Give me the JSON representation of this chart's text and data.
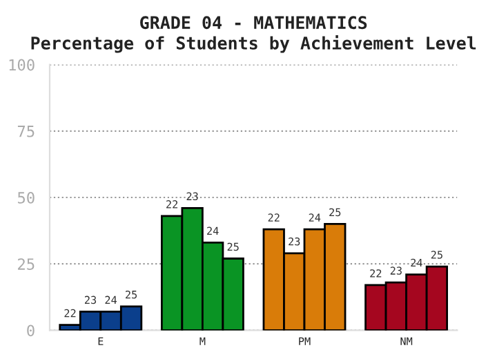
{
  "chart_data": {
    "type": "bar",
    "title": "GRADE 04 - MATHEMATICS\nPercentage of Students by Achievement Level",
    "categories": [
      "E",
      "M",
      "PM",
      "NM"
    ],
    "series": [
      {
        "name": "22",
        "colors": [
          "#0b3f8c",
          "#0a9424",
          "#d97c09",
          "#a5061f"
        ],
        "values": [
          2,
          43,
          38,
          17
        ]
      },
      {
        "name": "23",
        "colors": [
          "#0b3f8c",
          "#0a9424",
          "#d97c09",
          "#a5061f"
        ],
        "values": [
          7,
          46,
          29,
          18
        ]
      },
      {
        "name": "24",
        "colors": [
          "#0b3f8c",
          "#0a9424",
          "#d97c09",
          "#a5061f"
        ],
        "values": [
          7,
          33,
          38,
          21
        ]
      },
      {
        "name": "25",
        "colors": [
          "#0b3f8c",
          "#0a9424",
          "#d97c09",
          "#a5061f"
        ],
        "values": [
          9,
          27,
          40,
          24
        ]
      }
    ],
    "ylim": [
      0,
      100
    ],
    "yticks": [
      0,
      25,
      50,
      75,
      100
    ],
    "grid": "y",
    "legend": false
  }
}
